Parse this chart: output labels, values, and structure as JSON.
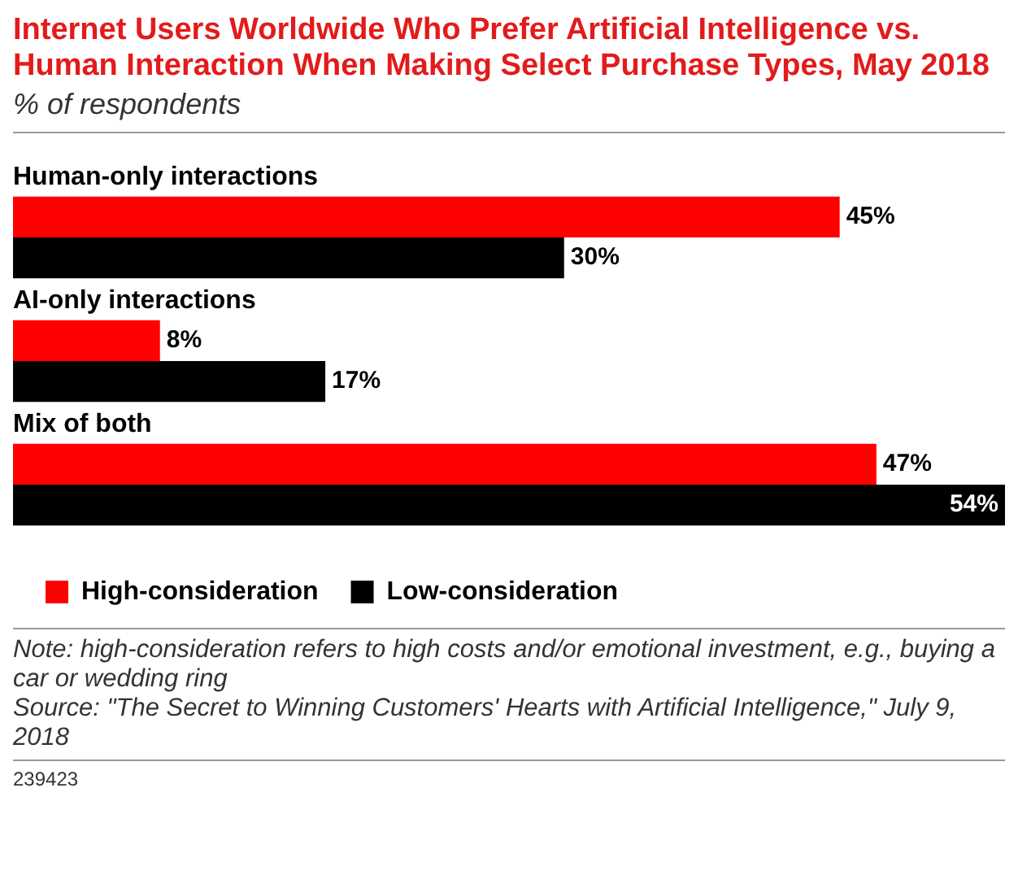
{
  "chart_data": {
    "type": "bar",
    "orientation": "horizontal",
    "title": "Internet Users Worldwide Who Prefer Artificial Intelligence vs. Human Interaction When Making Select Purchase Types, May 2018",
    "subtitle": "% of respondents",
    "categories": [
      "Human-only interactions",
      "AI-only interactions",
      "Mix of both"
    ],
    "series": [
      {
        "name": "High-consideration",
        "color": "#ff0000",
        "values": [
          45,
          8,
          47
        ],
        "value_labels": [
          "45%",
          "8%",
          "47%"
        ]
      },
      {
        "name": "Low-consideration",
        "color": "#000000",
        "values": [
          30,
          17,
          54
        ],
        "value_labels": [
          "30%",
          "17%",
          "54%"
        ]
      }
    ],
    "legend": "bottom",
    "annotations": [
      "Note: high-consideration refers to high costs and/or emotional investment, e.g., buying a car or wedding ring",
      "Source: \"The Secret to Winning Customers' Hearts with Artificial Intelligence,\" July 9, 2018",
      "239423"
    ]
  }
}
